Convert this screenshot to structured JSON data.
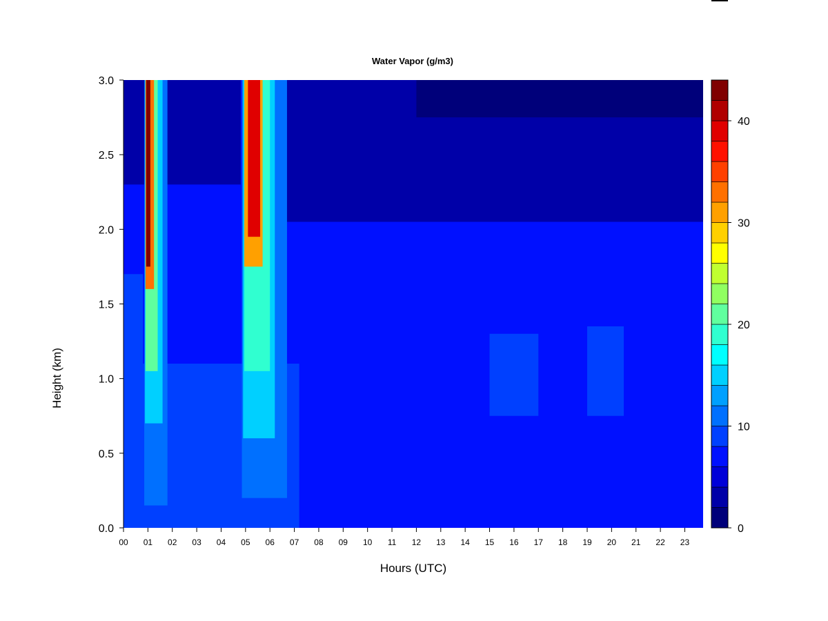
{
  "chart_data": {
    "type": "heatmap",
    "title": "Water Vapor (g/m3)",
    "xlabel": "Hours (UTC)",
    "ylabel": "Height (km)",
    "x_ticks": [
      "00",
      "01",
      "02",
      "03",
      "04",
      "05",
      "06",
      "07",
      "08",
      "09",
      "10",
      "11",
      "12",
      "13",
      "14",
      "15",
      "16",
      "17",
      "18",
      "19",
      "20",
      "21",
      "22",
      "23"
    ],
    "xlim": [
      0,
      23.75
    ],
    "y_ticks": [
      "0.0",
      "0.5",
      "1.0",
      "1.5",
      "2.0",
      "2.5",
      "3.0"
    ],
    "ylim": [
      0,
      3.0
    ],
    "colorbar": {
      "ticks": [
        "0",
        "10",
        "20",
        "30",
        "40"
      ],
      "range": [
        0,
        44
      ],
      "levels": [
        {
          "from": 0,
          "to": 2,
          "color": "#00007a"
        },
        {
          "from": 2,
          "to": 4,
          "color": "#0000a8"
        },
        {
          "from": 4,
          "to": 6,
          "color": "#0000d8"
        },
        {
          "from": 6,
          "to": 8,
          "color": "#0010ff"
        },
        {
          "from": 8,
          "to": 10,
          "color": "#0040ff"
        },
        {
          "from": 10,
          "to": 12,
          "color": "#0070ff"
        },
        {
          "from": 12,
          "to": 14,
          "color": "#00a0ff"
        },
        {
          "from": 14,
          "to": 16,
          "color": "#00d0ff"
        },
        {
          "from": 16,
          "to": 18,
          "color": "#00ffff"
        },
        {
          "from": 18,
          "to": 20,
          "color": "#30ffd0"
        },
        {
          "from": 20,
          "to": 22,
          "color": "#60ff9e"
        },
        {
          "from": 22,
          "to": 24,
          "color": "#90ff60"
        },
        {
          "from": 24,
          "to": 26,
          "color": "#c0ff30"
        },
        {
          "from": 26,
          "to": 28,
          "color": "#ffff00"
        },
        {
          "from": 28,
          "to": 30,
          "color": "#ffd000"
        },
        {
          "from": 30,
          "to": 32,
          "color": "#ffa000"
        },
        {
          "from": 32,
          "to": 34,
          "color": "#ff7000"
        },
        {
          "from": 34,
          "to": 36,
          "color": "#ff4000"
        },
        {
          "from": 36,
          "to": 38,
          "color": "#ff1000"
        },
        {
          "from": 38,
          "to": 40,
          "color": "#e00000"
        },
        {
          "from": 40,
          "to": 42,
          "color": "#b00000"
        },
        {
          "from": 42,
          "to": 44,
          "color": "#800000"
        }
      ]
    },
    "regions": [
      {
        "name": "background",
        "x": [
          0,
          23.75
        ],
        "y": [
          0,
          3.0
        ],
        "value": 7
      },
      {
        "name": "upper-dry-layer",
        "x": [
          6.5,
          23.75
        ],
        "y": [
          2.05,
          3.0
        ],
        "value": 3
      },
      {
        "name": "top-dry-layer",
        "x": [
          12,
          23.75
        ],
        "y": [
          2.75,
          3.0
        ],
        "value": 1
      },
      {
        "name": "early-dry-layer",
        "x": [
          0,
          4.8
        ],
        "y": [
          2.3,
          3.0
        ],
        "value": 3
      },
      {
        "name": "pre-plume-moist",
        "x": [
          0,
          0.8
        ],
        "y": [
          0,
          1.7
        ],
        "value": 8
      },
      {
        "name": "low-moist-band",
        "x": [
          0,
          7.2
        ],
        "y": [
          0,
          1.1
        ],
        "value": 8.5
      },
      {
        "name": "midday-moist-band",
        "x": [
          15,
          17
        ],
        "y": [
          0.75,
          1.3
        ],
        "value": 8.5
      },
      {
        "name": "evening-moist-band",
        "x": [
          19,
          20.5
        ],
        "y": [
          0.75,
          1.35
        ],
        "value": 8.5
      },
      {
        "name": "plume-1-edge",
        "x": [
          0.85,
          1.8
        ],
        "y": [
          0.15,
          3.0
        ],
        "value": 10
      },
      {
        "name": "plume-1-mid",
        "x": [
          0.88,
          1.6
        ],
        "y": [
          0.7,
          3.0
        ],
        "value": 15
      },
      {
        "name": "plume-1-inner",
        "x": [
          0.9,
          1.4
        ],
        "y": [
          1.05,
          3.0
        ],
        "value": 20
      },
      {
        "name": "plume-1-upper",
        "x": [
          0.9,
          1.25
        ],
        "y": [
          1.6,
          3.0
        ],
        "value": 32
      },
      {
        "name": "plume-1-core",
        "x": [
          0.93,
          1.1
        ],
        "y": [
          1.75,
          3.0
        ],
        "value": 42
      },
      {
        "name": "plume-2-edge",
        "x": [
          4.85,
          6.7
        ],
        "y": [
          0.2,
          3.0
        ],
        "value": 10
      },
      {
        "name": "plume-2-mid",
        "x": [
          4.9,
          6.2
        ],
        "y": [
          0.6,
          3.0
        ],
        "value": 14
      },
      {
        "name": "plume-2-inner",
        "x": [
          4.95,
          6.0
        ],
        "y": [
          1.05,
          3.0
        ],
        "value": 18
      },
      {
        "name": "plume-2-upper",
        "x": [
          4.95,
          5.7
        ],
        "y": [
          1.75,
          3.0
        ],
        "value": 31
      },
      {
        "name": "plume-2-core",
        "x": [
          5.1,
          5.6
        ],
        "y": [
          1.95,
          3.0
        ],
        "value": 38
      }
    ]
  }
}
